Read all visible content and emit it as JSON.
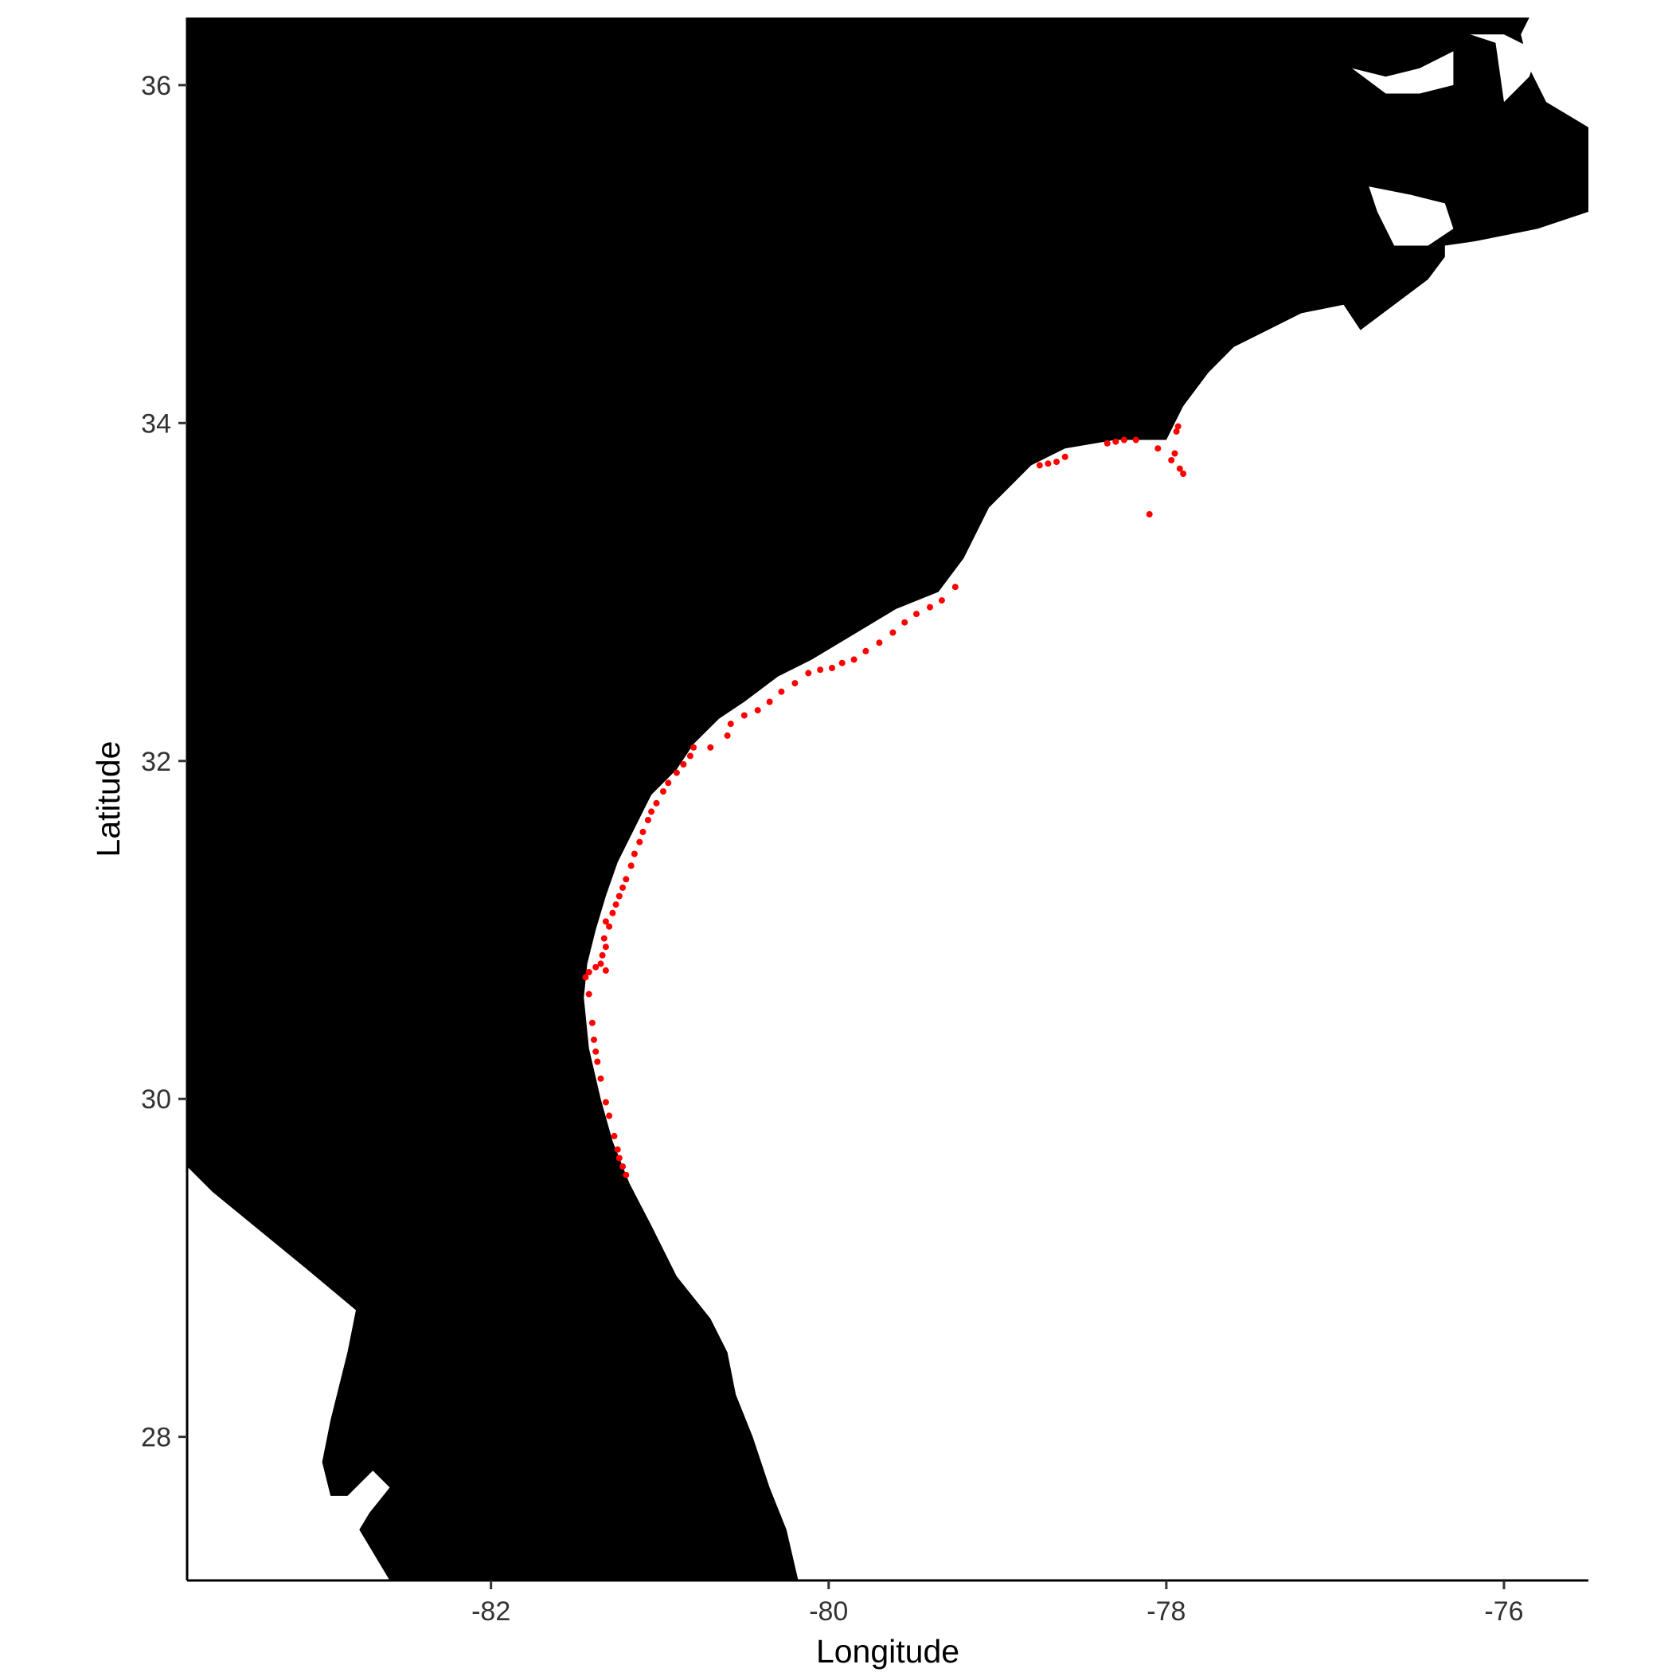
{
  "chart_data": {
    "type": "map-scatter",
    "xlabel": "Longitude",
    "ylabel": "Latitude",
    "xlim": [
      -83.8,
      -75.5
    ],
    "ylim": [
      27.15,
      36.4
    ],
    "x_ticks": [
      -82,
      -80,
      -78,
      -76
    ],
    "y_ticks": [
      28,
      30,
      32,
      34,
      36
    ],
    "x_tick_labels": [
      "-82",
      "-80",
      "-78",
      "-76"
    ],
    "y_tick_labels": [
      "28",
      "30",
      "32",
      "34",
      "36"
    ],
    "colors": {
      "land": "#000000",
      "water": "#ffffff",
      "points": "#ff0000",
      "axis": "#000000"
    },
    "land_outline": [
      [
        -83.8,
        36.4
      ],
      [
        -75.85,
        36.4
      ],
      [
        -75.9,
        36.3
      ],
      [
        -75.85,
        36.1
      ],
      [
        -75.75,
        35.9
      ],
      [
        -75.5,
        35.75
      ],
      [
        -75.5,
        35.25
      ],
      [
        -75.8,
        35.15
      ],
      [
        -76.3,
        35.05
      ],
      [
        -76.45,
        34.85
      ],
      [
        -76.85,
        34.55
      ],
      [
        -76.95,
        34.7
      ],
      [
        -77.2,
        34.65
      ],
      [
        -77.4,
        34.55
      ],
      [
        -77.6,
        34.45
      ],
      [
        -77.75,
        34.3
      ],
      [
        -77.9,
        34.1
      ],
      [
        -78.0,
        33.9
      ],
      [
        -78.3,
        33.9
      ],
      [
        -78.6,
        33.85
      ],
      [
        -78.8,
        33.75
      ],
      [
        -79.05,
        33.5
      ],
      [
        -79.2,
        33.2
      ],
      [
        -79.35,
        33.0
      ],
      [
        -79.6,
        32.9
      ],
      [
        -79.85,
        32.75
      ],
      [
        -80.1,
        32.6
      ],
      [
        -80.3,
        32.5
      ],
      [
        -80.5,
        32.35
      ],
      [
        -80.65,
        32.25
      ],
      [
        -80.8,
        32.1
      ],
      [
        -80.9,
        31.95
      ],
      [
        -81.05,
        31.8
      ],
      [
        -81.15,
        31.6
      ],
      [
        -81.25,
        31.4
      ],
      [
        -81.32,
        31.2
      ],
      [
        -81.38,
        31.0
      ],
      [
        -81.43,
        30.8
      ],
      [
        -81.45,
        30.6
      ],
      [
        -81.42,
        30.3
      ],
      [
        -81.35,
        30.0
      ],
      [
        -81.28,
        29.75
      ],
      [
        -81.18,
        29.5
      ],
      [
        -81.05,
        29.25
      ],
      [
        -80.9,
        28.95
      ],
      [
        -80.7,
        28.7
      ],
      [
        -80.6,
        28.5
      ],
      [
        -80.55,
        28.25
      ],
      [
        -80.45,
        28.0
      ],
      [
        -80.35,
        27.7
      ],
      [
        -80.25,
        27.45
      ],
      [
        -80.18,
        27.15
      ],
      [
        -82.6,
        27.15
      ],
      [
        -82.78,
        27.45
      ],
      [
        -82.72,
        27.55
      ],
      [
        -82.6,
        27.7
      ],
      [
        -82.7,
        27.8
      ],
      [
        -82.85,
        27.65
      ],
      [
        -82.95,
        27.65
      ],
      [
        -83.0,
        27.85
      ],
      [
        -82.95,
        28.1
      ],
      [
        -82.85,
        28.5
      ],
      [
        -82.8,
        28.75
      ],
      [
        -83.1,
        29.0
      ],
      [
        -83.65,
        29.45
      ],
      [
        -83.8,
        29.6
      ]
    ],
    "water_features": [
      [
        [
          -76.3,
          36.2
        ],
        [
          -76.5,
          36.1
        ],
        [
          -76.7,
          36.05
        ],
        [
          -76.9,
          36.1
        ],
        [
          -76.7,
          35.95
        ],
        [
          -76.5,
          35.95
        ],
        [
          -76.3,
          36.0
        ]
      ],
      [
        [
          -76.2,
          36.3
        ],
        [
          -76.05,
          36.25
        ],
        [
          -76.0,
          35.9
        ],
        [
          -75.85,
          36.05
        ],
        [
          -75.8,
          36.2
        ],
        [
          -76.0,
          36.3
        ]
      ],
      [
        [
          -76.8,
          35.4
        ],
        [
          -76.55,
          35.35
        ],
        [
          -76.35,
          35.3
        ],
        [
          -76.3,
          35.15
        ],
        [
          -76.45,
          35.05
        ],
        [
          -76.65,
          35.05
        ],
        [
          -76.75,
          35.25
        ]
      ],
      [
        [
          -76.35,
          35.05
        ],
        [
          -76.0,
          35.1
        ],
        [
          -75.85,
          34.95
        ],
        [
          -75.95,
          34.75
        ],
        [
          -76.35,
          34.85
        ]
      ]
    ],
    "points": [
      {
        "x": -81.2,
        "y": 29.55
      },
      {
        "x": -81.22,
        "y": 29.6
      },
      {
        "x": -81.24,
        "y": 29.65
      },
      {
        "x": -81.25,
        "y": 29.7
      },
      {
        "x": -81.27,
        "y": 29.78
      },
      {
        "x": -81.3,
        "y": 29.9
      },
      {
        "x": -81.32,
        "y": 29.98
      },
      {
        "x": -81.35,
        "y": 30.12
      },
      {
        "x": -81.37,
        "y": 30.22
      },
      {
        "x": -81.38,
        "y": 30.28
      },
      {
        "x": -81.39,
        "y": 30.35
      },
      {
        "x": -81.4,
        "y": 30.45
      },
      {
        "x": -81.42,
        "y": 30.62
      },
      {
        "x": -81.44,
        "y": 30.72
      },
      {
        "x": -81.42,
        "y": 30.75
      },
      {
        "x": -81.38,
        "y": 30.78
      },
      {
        "x": -81.35,
        "y": 30.8
      },
      {
        "x": -81.32,
        "y": 30.76
      },
      {
        "x": -81.34,
        "y": 30.85
      },
      {
        "x": -81.32,
        "y": 30.9
      },
      {
        "x": -81.33,
        "y": 30.95
      },
      {
        "x": -81.3,
        "y": 31.02
      },
      {
        "x": -81.32,
        "y": 31.05
      },
      {
        "x": -81.28,
        "y": 31.1
      },
      {
        "x": -81.26,
        "y": 31.15
      },
      {
        "x": -81.24,
        "y": 31.2
      },
      {
        "x": -81.22,
        "y": 31.25
      },
      {
        "x": -81.2,
        "y": 31.3
      },
      {
        "x": -81.17,
        "y": 31.38
      },
      {
        "x": -81.15,
        "y": 31.45
      },
      {
        "x": -81.12,
        "y": 31.52
      },
      {
        "x": -81.1,
        "y": 31.58
      },
      {
        "x": -81.07,
        "y": 31.65
      },
      {
        "x": -81.05,
        "y": 31.7
      },
      {
        "x": -81.02,
        "y": 31.75
      },
      {
        "x": -80.98,
        "y": 31.82
      },
      {
        "x": -80.95,
        "y": 31.87
      },
      {
        "x": -80.9,
        "y": 31.93
      },
      {
        "x": -80.86,
        "y": 31.98
      },
      {
        "x": -80.82,
        "y": 32.03
      },
      {
        "x": -80.8,
        "y": 32.08
      },
      {
        "x": -80.7,
        "y": 32.08
      },
      {
        "x": -80.6,
        "y": 32.15
      },
      {
        "x": -80.58,
        "y": 32.22
      },
      {
        "x": -80.5,
        "y": 32.27
      },
      {
        "x": -80.42,
        "y": 32.3
      },
      {
        "x": -80.35,
        "y": 32.35
      },
      {
        "x": -80.28,
        "y": 32.41
      },
      {
        "x": -80.2,
        "y": 32.46
      },
      {
        "x": -80.12,
        "y": 32.52
      },
      {
        "x": -80.05,
        "y": 32.54
      },
      {
        "x": -79.98,
        "y": 32.55
      },
      {
        "x": -79.92,
        "y": 32.58
      },
      {
        "x": -79.85,
        "y": 32.6
      },
      {
        "x": -79.78,
        "y": 32.65
      },
      {
        "x": -79.7,
        "y": 32.7
      },
      {
        "x": -79.62,
        "y": 32.76
      },
      {
        "x": -79.55,
        "y": 32.82
      },
      {
        "x": -79.48,
        "y": 32.87
      },
      {
        "x": -79.4,
        "y": 32.91
      },
      {
        "x": -79.33,
        "y": 32.95
      },
      {
        "x": -79.25,
        "y": 33.03
      },
      {
        "x": -78.75,
        "y": 33.75
      },
      {
        "x": -78.7,
        "y": 33.76
      },
      {
        "x": -78.65,
        "y": 33.77
      },
      {
        "x": -78.6,
        "y": 33.8
      },
      {
        "x": -78.35,
        "y": 33.88
      },
      {
        "x": -78.3,
        "y": 33.89
      },
      {
        "x": -78.25,
        "y": 33.9
      },
      {
        "x": -78.18,
        "y": 33.9
      },
      {
        "x": -78.05,
        "y": 33.85
      },
      {
        "x": -77.97,
        "y": 33.78
      },
      {
        "x": -77.95,
        "y": 33.82
      },
      {
        "x": -77.94,
        "y": 33.95
      },
      {
        "x": -77.93,
        "y": 33.98
      },
      {
        "x": -77.92,
        "y": 33.73
      },
      {
        "x": -77.9,
        "y": 33.7
      },
      {
        "x": -78.1,
        "y": 33.46
      }
    ]
  }
}
